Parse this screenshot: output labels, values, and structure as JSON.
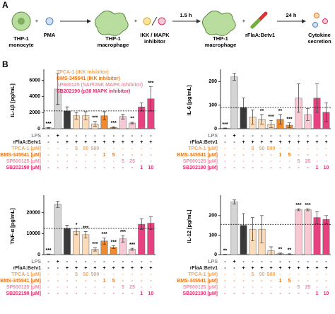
{
  "panel_a": {
    "letter": "A",
    "monocyte": [
      "THP-1",
      "monocyte"
    ],
    "pma": "PMA",
    "macrophage": [
      "THP-1",
      "macrophage"
    ],
    "inhibitor": [
      "IKK / MAPK",
      "inhibitor"
    ],
    "incubation_1": "1.5 h",
    "macrophage_2": [
      "THP-1",
      "macrophage"
    ],
    "stimulus": "rFlaA:Betv1",
    "incubation_2": "24 h",
    "result": [
      "Cytokine",
      "secretion"
    ]
  },
  "panel_b": {
    "letter": "B"
  },
  "conditions": {
    "rows": [
      {
        "label": "LPS",
        "color": "#888888",
        "cell_color": "#000000",
        "cells": [
          "-",
          "+",
          "-",
          "-",
          "-",
          "-",
          "-",
          "-",
          "-",
          "-",
          "-",
          "-"
        ]
      },
      {
        "label": "rFlaA:Betv1",
        "color": "#222222",
        "cell_color": "#000000",
        "cells": [
          "-",
          "-",
          "+",
          "+",
          "+",
          "+",
          "+",
          "+",
          "+",
          "+",
          "+",
          "+"
        ]
      },
      {
        "label": "TPCA-1 [µM]",
        "color": "#f5a65b",
        "cell_color": "#f5a65b",
        "cells": [
          "-",
          "-",
          "-",
          "5",
          "50",
          "500",
          "-",
          "-",
          "-",
          "-",
          "-",
          "-"
        ]
      },
      {
        "label": "BMS-345541 [µM]",
        "color": "#e8761a",
        "cell_color": "#e8761a",
        "cells": [
          "-",
          "-",
          "-",
          "-",
          "-",
          "-",
          "1",
          "5",
          "-",
          "-",
          "-",
          "-"
        ]
      },
      {
        "label": "SP600125 [µM]",
        "color": "#f08fa5",
        "cell_color": "#f08fa5",
        "cells": [
          "-",
          "-",
          "-",
          "-",
          "-",
          "-",
          "-",
          "-",
          "5",
          "25",
          "-",
          "-"
        ]
      },
      {
        "label": "SB202190 [µM]",
        "color": "#e0306f",
        "cell_color": "#e0306f",
        "cells": [
          "-",
          "-",
          "-",
          "-",
          "-",
          "-",
          "-",
          "-",
          "-",
          "-",
          "1",
          "10"
        ]
      }
    ]
  },
  "chart_data": [
    {
      "type": "bar",
      "y_label": "IL-1β [pg/mL]",
      "ylim": [
        0,
        7000
      ],
      "yticks": [
        0,
        2000,
        4000,
        6000
      ],
      "reference_line": 2200,
      "colors": [
        "#ffffff",
        "#d4d4d4",
        "#3a3a3a",
        "#fcdcb8",
        "#fcdcb8",
        "#fcdcb8",
        "#ef8a2e",
        "#ef8a2e",
        "#f9c9d3",
        "#f9c9d3",
        "#e7417f",
        "#e7417f"
      ],
      "values": [
        100,
        4900,
        2200,
        1600,
        1600,
        600,
        1600,
        150,
        1500,
        700,
        2700,
        3700
      ],
      "errors": [
        50,
        1900,
        500,
        400,
        500,
        300,
        500,
        80,
        300,
        100,
        500,
        1500
      ],
      "significance": [
        "***",
        null,
        null,
        null,
        null,
        "***",
        null,
        "***",
        null,
        "**",
        null,
        "***"
      ],
      "legend": [
        {
          "label": "TPCA-1 (IKK inhibitor)",
          "color": "#f5a65b"
        },
        {
          "label": "BMS-345541 (IKK inhibitor)",
          "color": "#e8761a"
        },
        {
          "label": "SP600125 (SAP/JNK MAPK inhibitor)",
          "color": "#f08fa5"
        },
        {
          "label": "SB202190 (p38 MAPK inhibitor)",
          "color": "#e0306f"
        }
      ]
    },
    {
      "type": "bar",
      "y_label": "IL-6 [pg/mL]",
      "ylim": [
        0,
        240
      ],
      "yticks": [
        0,
        100,
        200
      ],
      "reference_line": 90,
      "colors": [
        "#ffffff",
        "#d4d4d4",
        "#3a3a3a",
        "#fcdcb8",
        "#fcdcb8",
        "#fcdcb8",
        "#ef8a2e",
        "#ef8a2e",
        "#f9c9d3",
        "#f9c9d3",
        "#e7417f",
        "#e7417f"
      ],
      "values": [
        2,
        220,
        90,
        50,
        40,
        20,
        40,
        15,
        130,
        60,
        130,
        70
      ],
      "errors": [
        1,
        15,
        40,
        30,
        20,
        15,
        20,
        10,
        60,
        25,
        60,
        40
      ],
      "significance": [
        "***",
        null,
        null,
        null,
        "**",
        "***",
        "**",
        "***",
        null,
        null,
        null,
        null
      ]
    },
    {
      "type": "bar",
      "y_label": "TNF-α [pg/mL]",
      "ylim": [
        0,
        27000
      ],
      "yticks": [
        0,
        10000,
        20000
      ],
      "reference_line": 12500,
      "colors": [
        "#ffffff",
        "#d4d4d4",
        "#3a3a3a",
        "#fcdcb8",
        "#fcdcb8",
        "#fcdcb8",
        "#ef8a2e",
        "#ef8a2e",
        "#f9c9d3",
        "#f9c9d3",
        "#e7417f",
        "#e7417f"
      ],
      "values": [
        200,
        24000,
        12500,
        11000,
        9500,
        2500,
        6500,
        3500,
        7500,
        2500,
        14500,
        15000
      ],
      "errors": [
        100,
        1500,
        1500,
        1500,
        1500,
        800,
        1500,
        700,
        1500,
        500,
        2500,
        3000
      ],
      "significance": [
        "***",
        null,
        null,
        "*",
        "***",
        "***",
        "***",
        "***",
        "***",
        "***",
        null,
        null
      ]
    },
    {
      "type": "bar",
      "y_label": "IL-12 [pg/mL]",
      "ylim": [
        0,
        290
      ],
      "yticks": [
        0,
        100,
        200
      ],
      "reference_line": 155,
      "colors": [
        "#ffffff",
        "#d4d4d4",
        "#3a3a3a",
        "#fcdcb8",
        "#fcdcb8",
        "#fcdcb8",
        "#ef8a2e",
        "#ef8a2e",
        "#f9c9d3",
        "#f9c9d3",
        "#e7417f",
        "#e7417f"
      ],
      "values": [
        1,
        270,
        150,
        130,
        130,
        20,
        5,
        2,
        230,
        230,
        190,
        180
      ],
      "errors": [
        1,
        10,
        60,
        60,
        70,
        20,
        3,
        2,
        5,
        5,
        30,
        20
      ],
      "significance": [
        "**",
        null,
        null,
        null,
        null,
        null,
        "**",
        "**",
        "***",
        "***",
        null,
        null
      ]
    }
  ]
}
